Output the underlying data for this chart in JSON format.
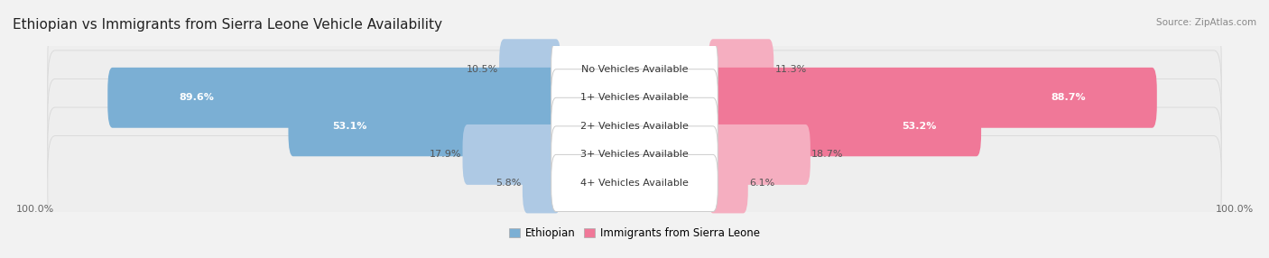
{
  "title": "Ethiopian vs Immigrants from Sierra Leone Vehicle Availability",
  "source": "Source: ZipAtlas.com",
  "categories": [
    "No Vehicles Available",
    "1+ Vehicles Available",
    "2+ Vehicles Available",
    "3+ Vehicles Available",
    "4+ Vehicles Available"
  ],
  "ethiopian_values": [
    10.5,
    89.6,
    53.1,
    17.9,
    5.8
  ],
  "sierra_leone_values": [
    11.3,
    88.7,
    53.2,
    18.7,
    6.1
  ],
  "max_value": 100.0,
  "ethiopian_color": "#7bafd4",
  "sierra_leone_color": "#f07898",
  "ethiopian_light_color": "#aec9e4",
  "sierra_leone_light_color": "#f5aec0",
  "ethiopian_label": "Ethiopian",
  "sierra_leone_label": "Immigrants from Sierra Leone",
  "bg_color": "#f2f2f2",
  "row_bg_color": "#eeeeee",
  "row_border_color": "#d8d8d8",
  "center_label_bg": "#ffffff",
  "center_label_border": "#cccccc",
  "axis_label": "100.0%",
  "title_fontsize": 11,
  "label_fontsize": 8,
  "value_fontsize": 8
}
